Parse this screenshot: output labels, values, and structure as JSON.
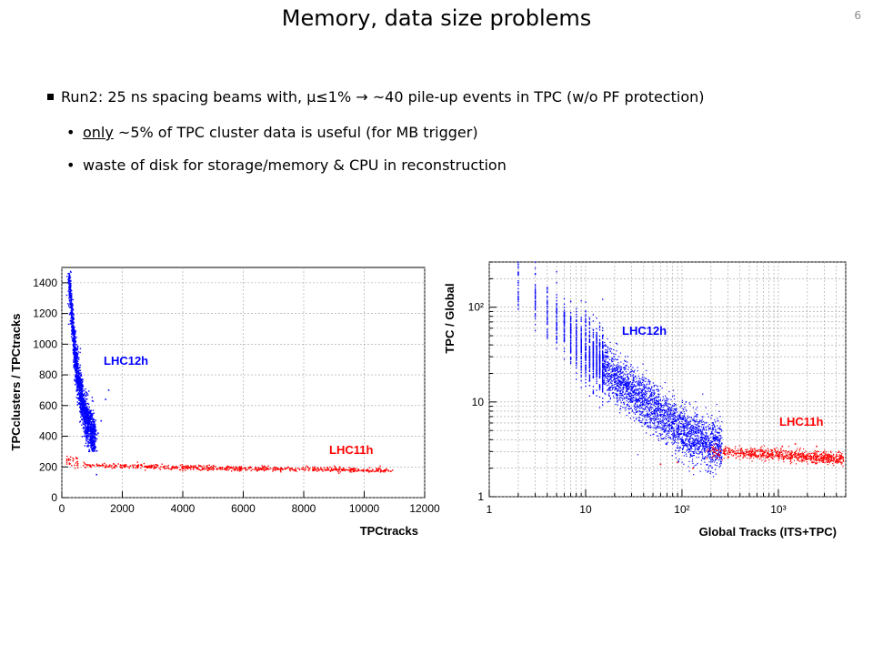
{
  "slide": {
    "title": "Memory, data size problems",
    "number": "6"
  },
  "bullets": {
    "main": "Run2: 25 ns spacing beams with, μ≤1% → ~40 pile-up events in TPC (w/o PF protection)",
    "sub1_underlined": "only",
    "sub1_rest": " ~5% of TPC cluster data is useful (for MB trigger)",
    "sub2": "waste of disk for storage/memory & CPU in reconstruction"
  },
  "colors": {
    "lhc12h": "#0000ff",
    "lhc11h": "#ff0000",
    "grid": "#a0a0a0"
  },
  "chart_data": [
    {
      "type": "scatter",
      "xlabel": "TPCtracks",
      "ylabel": "TPCclusters / TPCtracks",
      "xlim": [
        0,
        12000
      ],
      "ylim": [
        0,
        1500
      ],
      "xticks": [
        "0",
        "2000",
        "4000",
        "6000",
        "8000",
        "10000",
        "12000"
      ],
      "yticks": [
        "0",
        "200",
        "400",
        "600",
        "800",
        "1000",
        "1200",
        "1400"
      ],
      "grid": true,
      "series": [
        {
          "name": "LHC12h",
          "color": "#0000ff",
          "points": [
            [
              200,
              1450
            ],
            [
              300,
              1300
            ],
            [
              350,
              1150
            ],
            [
              400,
              1000
            ],
            [
              450,
              900
            ],
            [
              500,
              820
            ],
            [
              550,
              760
            ],
            [
              600,
              700
            ],
            [
              650,
              650
            ],
            [
              700,
              600
            ],
            [
              750,
              560
            ],
            [
              800,
              520
            ],
            [
              850,
              490
            ],
            [
              900,
              460
            ],
            [
              950,
              430
            ],
            [
              1000,
              410
            ],
            [
              1100,
              390
            ]
          ]
        },
        {
          "name": "LHC11h",
          "color": "#ff0000",
          "points": [
            [
              200,
              230
            ],
            [
              1000,
              210
            ],
            [
              2000,
              205
            ],
            [
              3000,
              200
            ],
            [
              4000,
              196
            ],
            [
              5000,
              192
            ],
            [
              6000,
              190
            ],
            [
              7000,
              188
            ],
            [
              8000,
              186
            ],
            [
              9000,
              183
            ],
            [
              10000,
              180
            ],
            [
              11000,
              178
            ]
          ]
        }
      ]
    },
    {
      "type": "scatter",
      "xlabel": "Global Tracks (ITS+TPC)",
      "ylabel": "TPC / Global",
      "xscale": "log",
      "yscale": "log",
      "xlim": [
        1,
        5000
      ],
      "ylim": [
        1,
        300
      ],
      "xticks": [
        "1",
        "10",
        "10²",
        "10³"
      ],
      "yticks": [
        "1",
        "10",
        "10²"
      ],
      "grid": true,
      "series": [
        {
          "name": "LHC12h",
          "color": "#0000ff",
          "points": [
            [
              2,
              200
            ],
            [
              3,
              120
            ],
            [
              4,
              90
            ],
            [
              5,
              70
            ],
            [
              7,
              50
            ],
            [
              10,
              35
            ],
            [
              15,
              25
            ],
            [
              20,
              18
            ],
            [
              30,
              13
            ],
            [
              50,
              9
            ],
            [
              80,
              6
            ],
            [
              120,
              4.5
            ],
            [
              200,
              3.5
            ]
          ]
        },
        {
          "name": "LHC11h",
          "color": "#ff0000",
          "points": [
            [
              200,
              3.0
            ],
            [
              300,
              3.0
            ],
            [
              500,
              2.9
            ],
            [
              1000,
              2.8
            ],
            [
              2000,
              2.6
            ],
            [
              4000,
              2.5
            ]
          ]
        }
      ]
    }
  ]
}
